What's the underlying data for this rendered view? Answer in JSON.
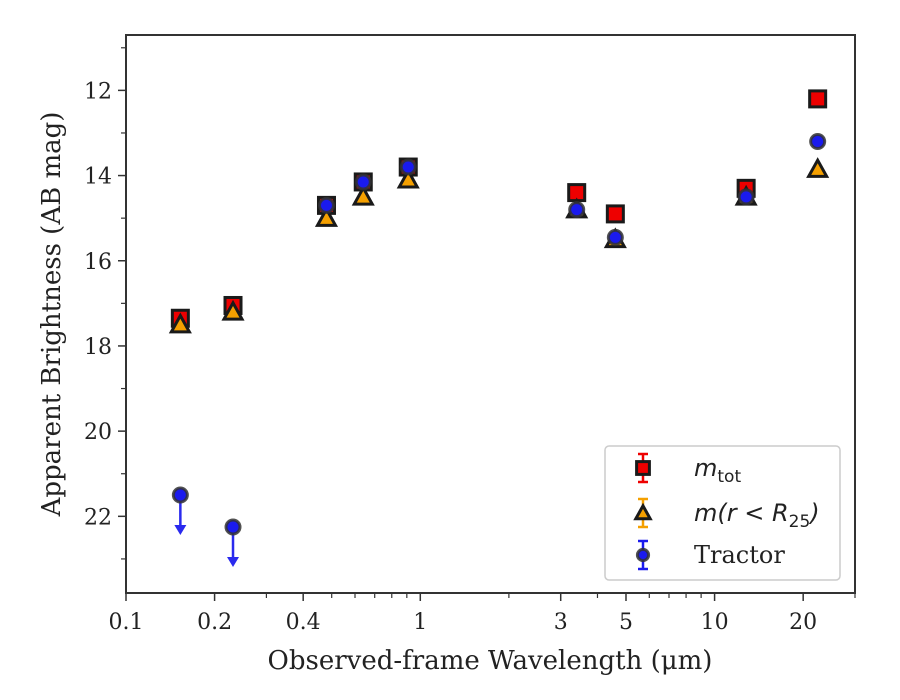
{
  "chart_data": {
    "type": "scatter",
    "xlabel": "Observed-frame Wavelength (μm)",
    "ylabel": "Apparent Brightness (AB mag)",
    "xscale": "log",
    "xlim": [
      0.1,
      30
    ],
    "ylim": [
      23.8,
      10.7
    ],
    "y_inverted": true,
    "xticks": [
      {
        "value": 0.1,
        "label": "0.1"
      },
      {
        "value": 0.2,
        "label": "0.2"
      },
      {
        "value": 0.4,
        "label": "0.4"
      },
      {
        "value": 1,
        "label": "1"
      },
      {
        "value": 3,
        "label": "3"
      },
      {
        "value": 5,
        "label": "5"
      },
      {
        "value": 10,
        "label": "10"
      },
      {
        "value": 20,
        "label": "20"
      }
    ],
    "yticks": [
      {
        "value": 12,
        "label": "12"
      },
      {
        "value": 14,
        "label": "14"
      },
      {
        "value": 16,
        "label": "16"
      },
      {
        "value": 18,
        "label": "18"
      },
      {
        "value": 20,
        "label": "20"
      },
      {
        "value": 22,
        "label": "22"
      }
    ],
    "grid": false,
    "legend_position": "bottom-right",
    "series": [
      {
        "name": "m_tot",
        "label_main": "m",
        "label_sub": "tot",
        "marker": "square",
        "color": "#ee0000",
        "points": [
          {
            "x": 0.153,
            "y": 17.35
          },
          {
            "x": 0.231,
            "y": 17.05
          },
          {
            "x": 0.48,
            "y": 14.7
          },
          {
            "x": 0.64,
            "y": 14.15
          },
          {
            "x": 0.91,
            "y": 13.8
          },
          {
            "x": 3.4,
            "y": 14.4
          },
          {
            "x": 4.6,
            "y": 14.9
          },
          {
            "x": 12.8,
            "y": 14.3
          },
          {
            "x": 22.4,
            "y": 12.2
          }
        ]
      },
      {
        "name": "m(r < R_25)",
        "label_main": "m(r < R",
        "label_sub": "25",
        "label_end": ")",
        "marker": "triangle",
        "color": "#f5a000",
        "points": [
          {
            "x": 0.153,
            "y": 17.5
          },
          {
            "x": 0.231,
            "y": 17.2
          },
          {
            "x": 0.48,
            "y": 15.0
          },
          {
            "x": 0.64,
            "y": 14.5
          },
          {
            "x": 0.91,
            "y": 14.1
          },
          {
            "x": 3.4,
            "y": 14.8
          },
          {
            "x": 4.6,
            "y": 15.5
          },
          {
            "x": 12.8,
            "y": 14.5
          },
          {
            "x": 22.4,
            "y": 13.85
          }
        ]
      },
      {
        "name": "Tractor",
        "label_main": "Tractor",
        "marker": "circle",
        "color": "#1a1aee",
        "points": [
          {
            "x": 0.153,
            "y": 21.5,
            "upper_limit": true
          },
          {
            "x": 0.231,
            "y": 22.25,
            "upper_limit": true
          },
          {
            "x": 0.48,
            "y": 14.7
          },
          {
            "x": 0.64,
            "y": 14.15
          },
          {
            "x": 0.91,
            "y": 13.8
          },
          {
            "x": 3.4,
            "y": 14.8
          },
          {
            "x": 4.6,
            "y": 15.45
          },
          {
            "x": 12.8,
            "y": 14.5
          },
          {
            "x": 22.4,
            "y": 13.2
          }
        ]
      }
    ]
  }
}
